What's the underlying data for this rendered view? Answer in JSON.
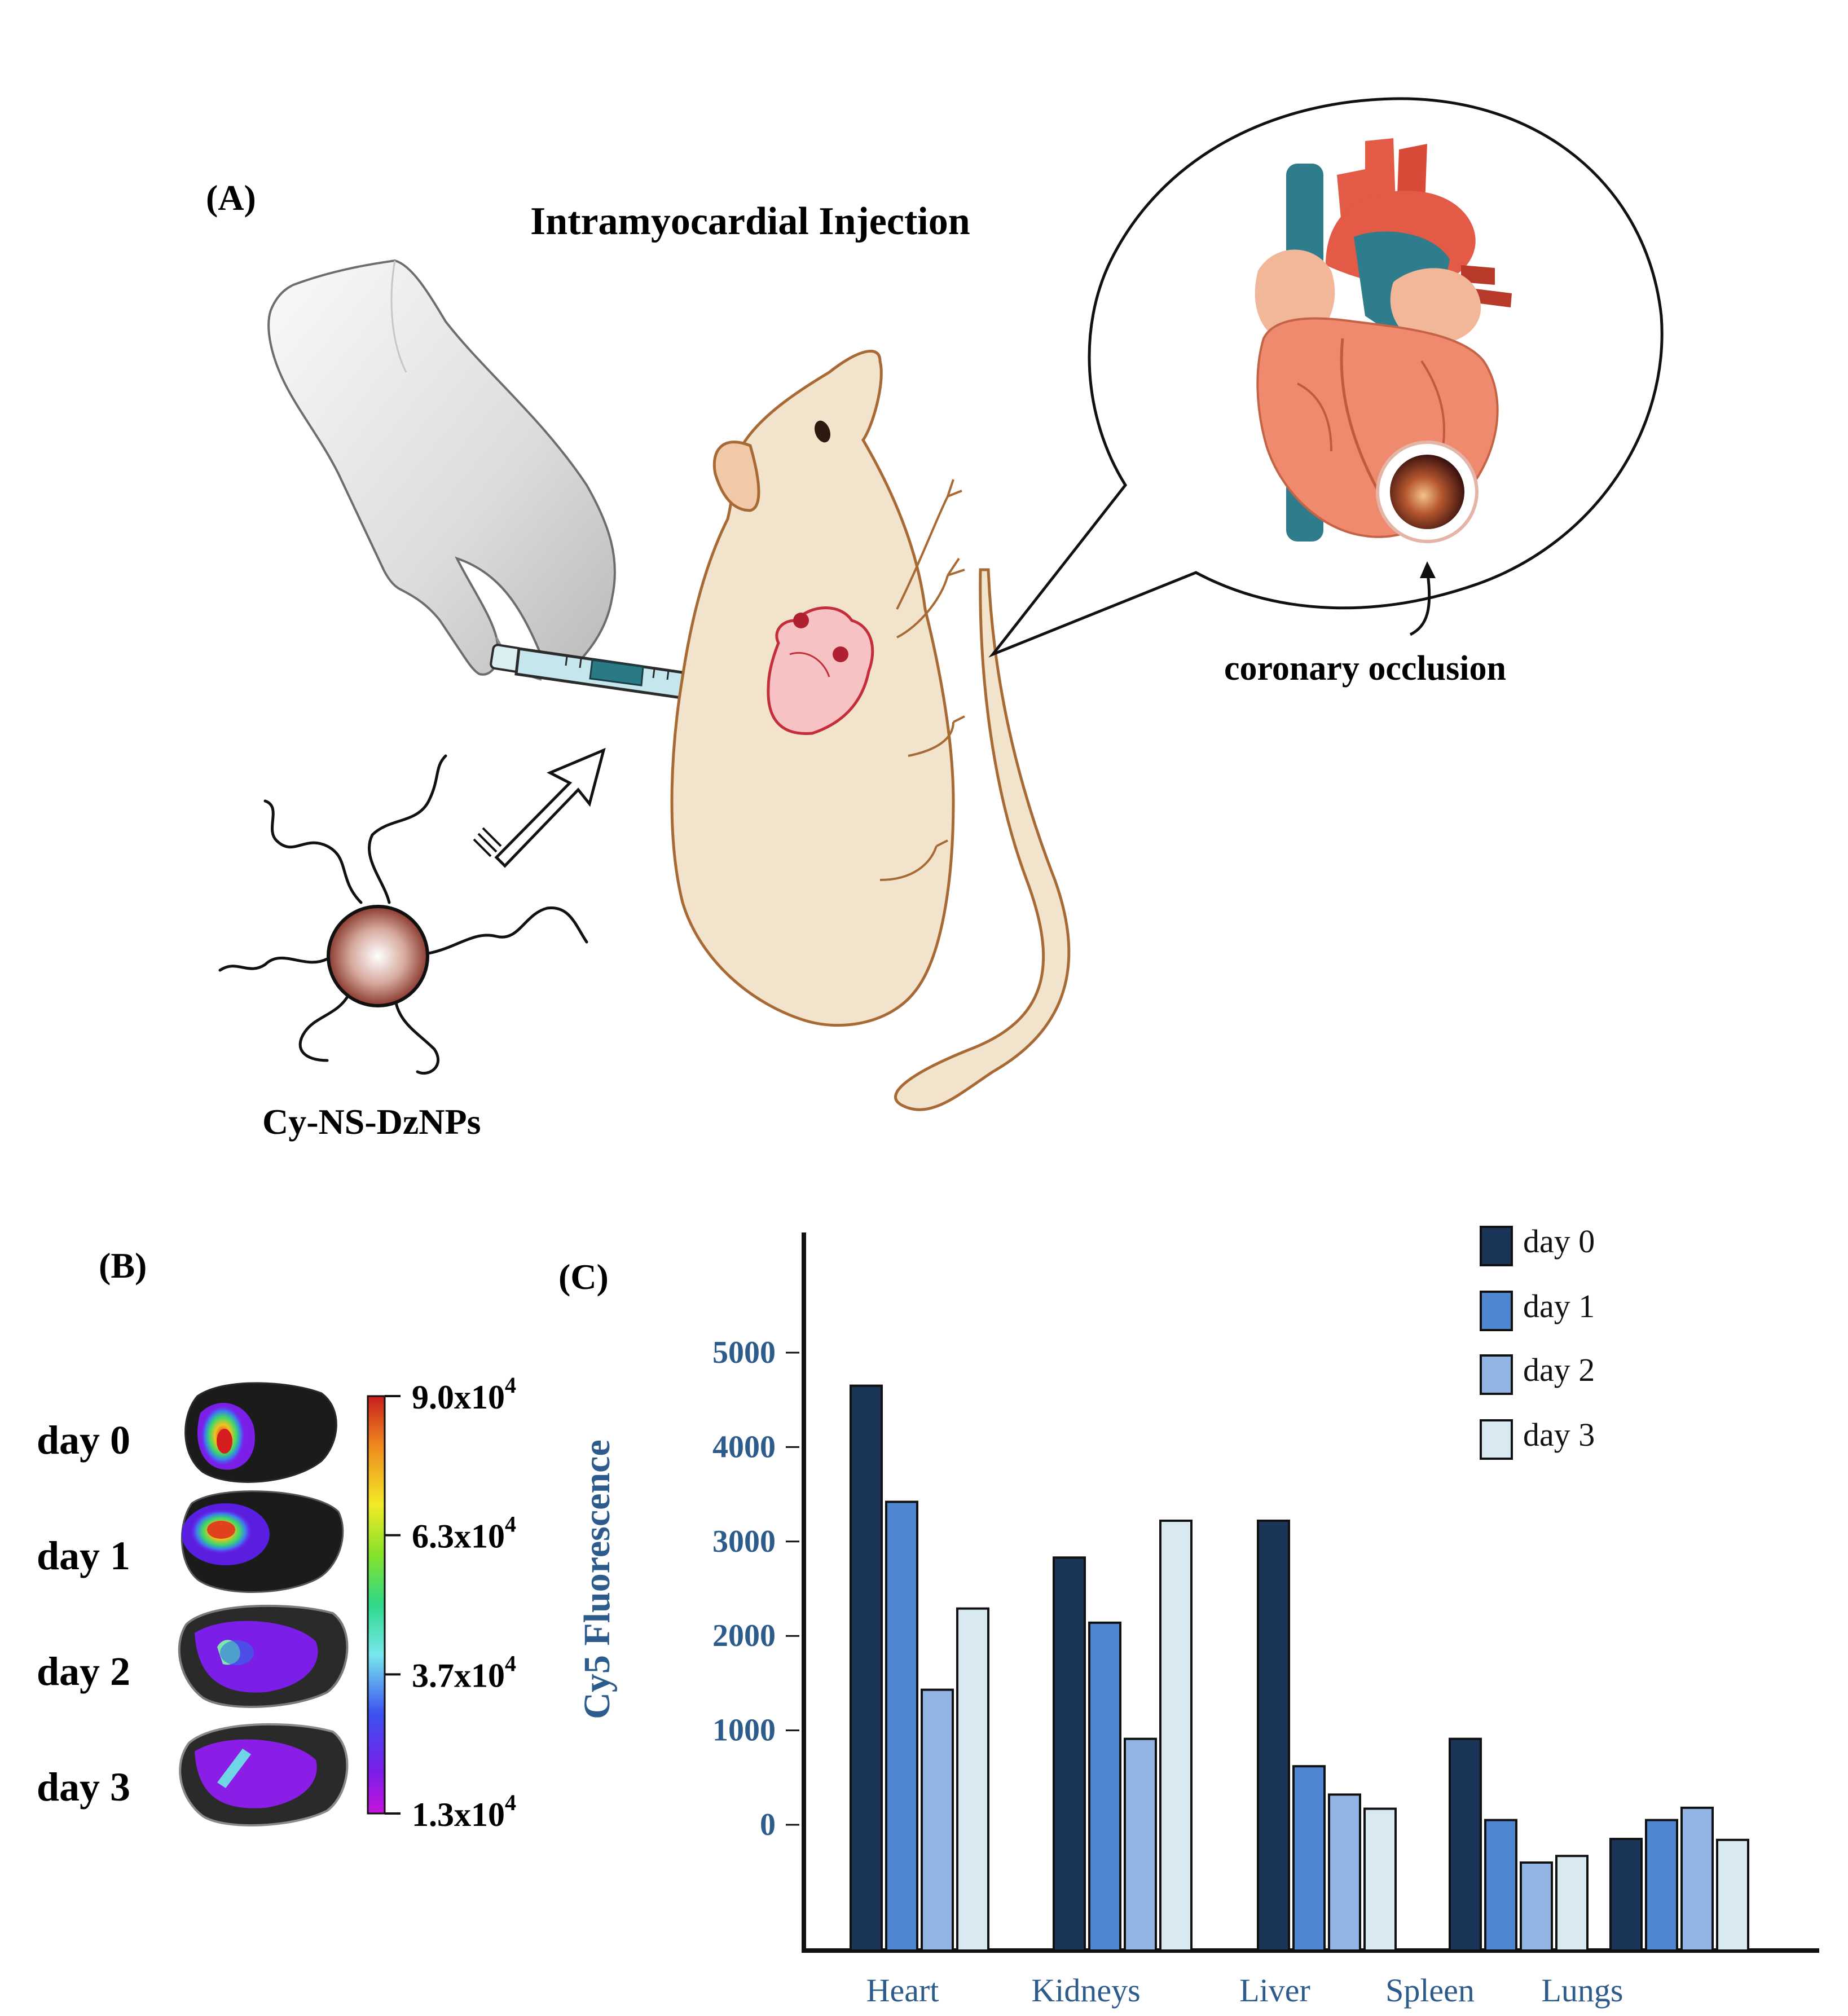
{
  "panel_a": {
    "label": "(A)",
    "title": "Intramyocardial Injection",
    "nanoparticle_label": "Cy-NS-DzNPs",
    "occlusion_label": "coronary occlusion",
    "icons": [
      "gloved-hand-icon",
      "syringe-icon",
      "mouse-icon",
      "mouse-heart-icon",
      "arrow-icon",
      "nanoparticle-icon",
      "speech-bubble-icon",
      "anatomical-heart-icon",
      "occluded-vessel-icon"
    ]
  },
  "panel_b": {
    "label": "(B)",
    "rows": [
      "day 0",
      "day 1",
      "day 2",
      "day 3"
    ],
    "colorbar": {
      "ticks": [
        {
          "mantissa": "9.0x10",
          "exp": "4"
        },
        {
          "mantissa": "6.3x10",
          "exp": "4"
        },
        {
          "mantissa": "3.7x10",
          "exp": "4"
        },
        {
          "mantissa": "1.3x10",
          "exp": "4"
        }
      ],
      "colors": [
        "#c81e1e",
        "#f08a1e",
        "#f2ea28",
        "#86e22a",
        "#2fd88a",
        "#78e8ee",
        "#3c52f0",
        "#7a1ee8",
        "#c814dc"
      ]
    }
  },
  "panel_c": {
    "label": "(C)",
    "ylabel": "Cy5 Fluorescence"
  },
  "chart_data": {
    "type": "bar",
    "categories": [
      "Heart",
      "Kidneys",
      "Liver",
      "Spleen",
      "Lungs"
    ],
    "series": [
      {
        "name": "day 0",
        "color": "#1b3558",
        "values": [
          4650,
          2830,
          3220,
          910,
          -150
        ]
      },
      {
        "name": "day 1",
        "color": "#4f86cf",
        "values": [
          3420,
          2140,
          620,
          50,
          50
        ]
      },
      {
        "name": "day 2",
        "color": "#92b4e2",
        "values": [
          1430,
          910,
          320,
          -400,
          180
        ]
      },
      {
        "name": "day 3",
        "color": "#d8e9f1",
        "values": [
          2290,
          3220,
          170,
          -330,
          -160
        ]
      }
    ],
    "yticks": [
      0,
      1000,
      2000,
      3000,
      4000,
      5000
    ],
    "ylim": [
      -1100,
      6300
    ],
    "ylabel": "Cy5 Fluorescence",
    "xlabel": "",
    "legend": "top-right"
  }
}
